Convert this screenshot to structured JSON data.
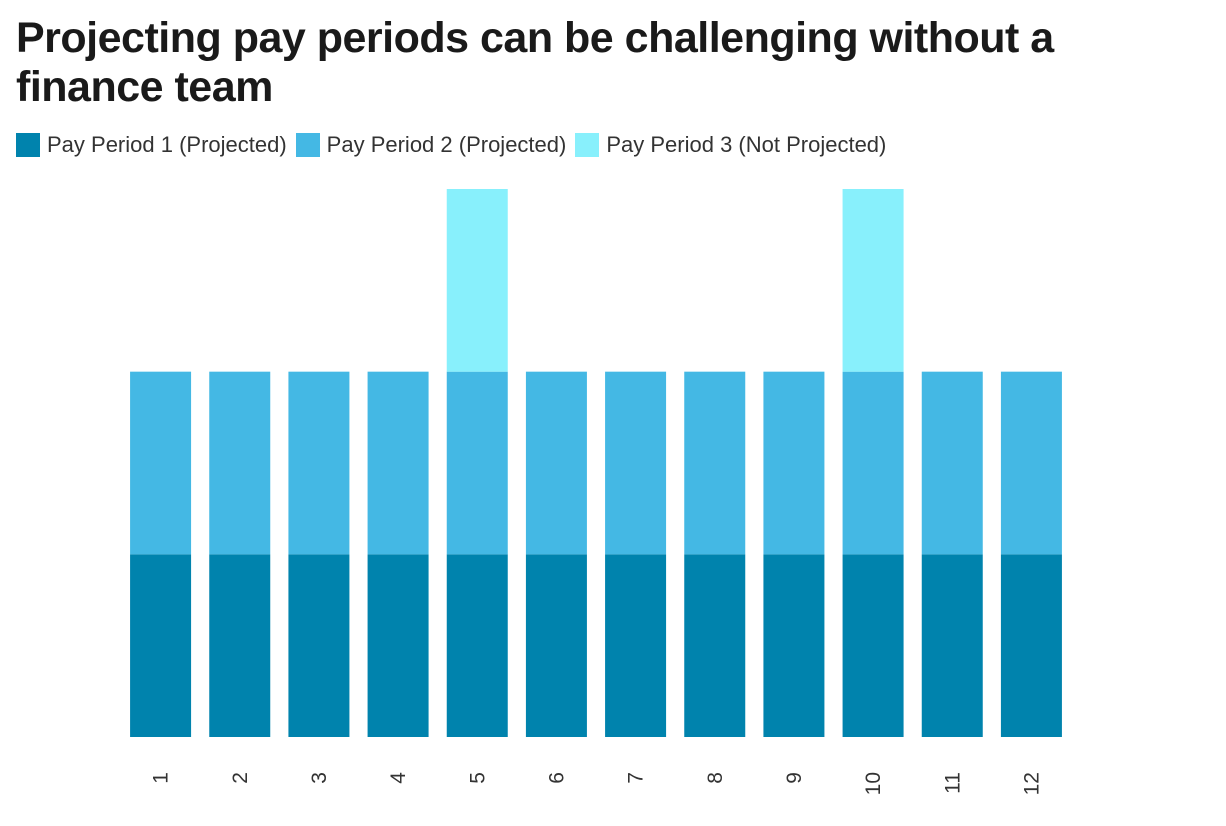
{
  "title": "Projecting pay periods can be challenging without a finance team",
  "colors": {
    "pay_period_1": "#0083AD",
    "pay_period_2": "#44B8E4",
    "pay_period_3": "#88F0FC"
  },
  "legend": {
    "placement": "top-left",
    "items": [
      {
        "label": "Pay Period 1 (Projected)"
      },
      {
        "label": "Pay Period 2 (Projected)"
      },
      {
        "label": "Pay Period 3 (Not Projected)"
      }
    ]
  },
  "chart_data": {
    "type": "bar",
    "stacked": true,
    "title": "Projecting pay periods can be challenging without a finance team",
    "xlabel": "",
    "ylabel": "",
    "categories": [
      "1",
      "2",
      "3",
      "4",
      "5",
      "6",
      "7",
      "8",
      "9",
      "10",
      "11",
      "12"
    ],
    "series": [
      {
        "name": "Pay Period 1 (Projected)",
        "values": [
          1,
          1,
          1,
          1,
          1,
          1,
          1,
          1,
          1,
          1,
          1,
          1
        ]
      },
      {
        "name": "Pay Period 2 (Projected)",
        "values": [
          1,
          1,
          1,
          1,
          1,
          1,
          1,
          1,
          1,
          1,
          1,
          1
        ]
      },
      {
        "name": "Pay Period 3 (Not Projected)",
        "values": [
          0,
          0,
          0,
          0,
          1,
          0,
          0,
          0,
          0,
          1,
          0,
          0
        ]
      }
    ],
    "ylim": [
      0,
      3
    ],
    "y_axis_visible": false,
    "x_tick_rotation": "vertical",
    "grid": false
  }
}
